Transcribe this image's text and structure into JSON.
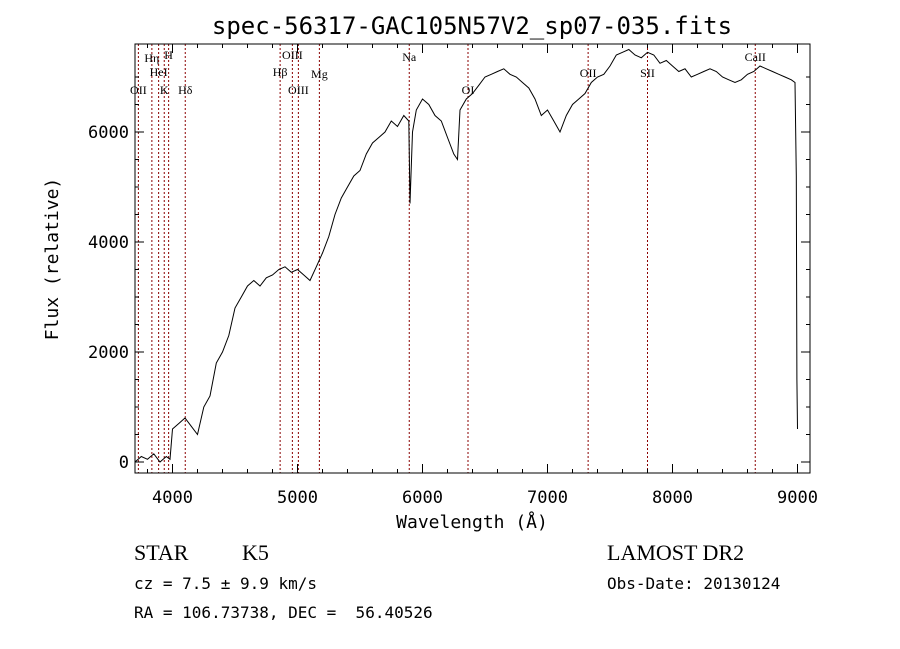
{
  "chart_data": {
    "type": "line",
    "title": "spec-56317-GAC105N57V2_sp07-035.fits",
    "xlabel": "Wavelength (Å)",
    "ylabel": "Flux (relative)",
    "xlim": [
      3700,
      9100
    ],
    "ylim": [
      -200,
      7600
    ],
    "x_ticks": [
      4000,
      5000,
      6000,
      7000,
      8000,
      9000
    ],
    "y_ticks": [
      0,
      2000,
      4000,
      6000
    ],
    "grid": false,
    "line_color": "#000000",
    "marker_color": "#8b0000",
    "series": [
      {
        "x": [
          3700,
          3750,
          3800,
          3850,
          3900,
          3950,
          3980,
          4000,
          4050,
          4100,
          4150,
          4200,
          4250,
          4300,
          4350,
          4400,
          4450,
          4500,
          4550,
          4600,
          4650,
          4700,
          4750,
          4800,
          4850,
          4900,
          4950,
          5000,
          5050,
          5100,
          5150,
          5200,
          5250,
          5300,
          5350,
          5400,
          5450,
          5500,
          5550,
          5600,
          5650,
          5700,
          5750,
          5800,
          5850,
          5890,
          5900,
          5920,
          5950,
          6000,
          6050,
          6100,
          6150,
          6200,
          6250,
          6280,
          6300,
          6350,
          6400,
          6450,
          6500,
          6550,
          6600,
          6650,
          6700,
          6750,
          6800,
          6850,
          6900,
          6950,
          7000,
          7050,
          7100,
          7150,
          7200,
          7250,
          7300,
          7350,
          7400,
          7450,
          7500,
          7550,
          7600,
          7650,
          7700,
          7750,
          7800,
          7850,
          7900,
          7950,
          8000,
          8050,
          8100,
          8150,
          8200,
          8250,
          8300,
          8350,
          8400,
          8450,
          8500,
          8550,
          8600,
          8650,
          8700,
          8750,
          8800,
          8850,
          8900,
          8950,
          8980,
          8990,
          8995,
          9000
        ],
        "values": [
          0,
          100,
          50,
          150,
          0,
          100,
          50,
          600,
          700,
          800,
          650,
          500,
          1000,
          1200,
          1800,
          2000,
          2300,
          2800,
          3000,
          3200,
          3300,
          3200,
          3350,
          3400,
          3500,
          3550,
          3450,
          3500,
          3400,
          3300,
          3550,
          3800,
          4100,
          4500,
          4800,
          5000,
          5200,
          5300,
          5600,
          5800,
          5900,
          6000,
          6200,
          6100,
          6300,
          6200,
          4700,
          6000,
          6400,
          6600,
          6500,
          6300,
          6200,
          5900,
          5600,
          5500,
          6400,
          6600,
          6700,
          6850,
          7000,
          7050,
          7100,
          7150,
          7050,
          7000,
          6900,
          6800,
          6600,
          6300,
          6400,
          6200,
          6000,
          6300,
          6500,
          6600,
          6700,
          6900,
          7000,
          7050,
          7200,
          7400,
          7450,
          7500,
          7400,
          7350,
          7450,
          7400,
          7250,
          7300,
          7200,
          7100,
          7150,
          7000,
          7050,
          7100,
          7150,
          7100,
          7000,
          6950,
          6900,
          6950,
          7050,
          7100,
          7200,
          7150,
          7100,
          7050,
          7000,
          6950,
          6900,
          5200,
          1500,
          600
        ]
      }
    ],
    "lines": [
      {
        "label": "OII",
        "x": 3727
      },
      {
        "label": "Hη",
        "x": 3835
      },
      {
        "label": "HeI",
        "x": 3889
      },
      {
        "label": "K",
        "x": 3934
      },
      {
        "label": "H",
        "x": 3969
      },
      {
        "label": "Hδ",
        "x": 4102
      },
      {
        "label": "Hβ",
        "x": 4861
      },
      {
        "label": "OIII",
        "x": 4959
      },
      {
        "label": "OIII",
        "x": 5007
      },
      {
        "label": "Mg",
        "x": 5175
      },
      {
        "label": "Na",
        "x": 5894
      },
      {
        "label": "OI",
        "x": 6364
      },
      {
        "label": "OII",
        "x": 7325
      },
      {
        "label": "SII",
        "x": 7800
      },
      {
        "label": "CaII",
        "x": 8662
      }
    ]
  },
  "info": {
    "class": "STAR",
    "subclass": "K5",
    "survey": "LAMOST DR2",
    "cz_line": "cz = 7.5 ± 9.9 km/s",
    "obs_date": "Obs-Date: 20130124",
    "radec_line": "RA = 106.73738, DEC =  56.40526"
  }
}
